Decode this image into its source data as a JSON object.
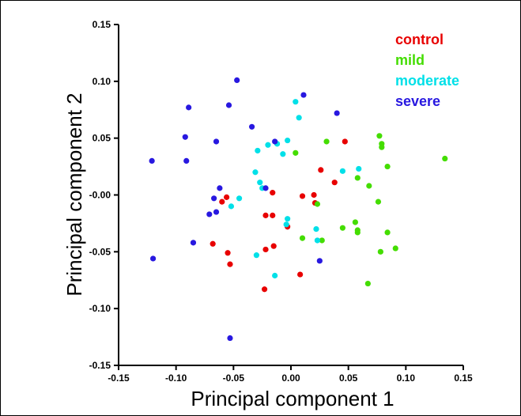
{
  "chart_data": {
    "type": "scatter",
    "title": "",
    "xlabel": "Principal component 1",
    "ylabel": "Principal component 2",
    "xlim": [
      -0.15,
      0.15
    ],
    "ylim": [
      -0.15,
      0.15
    ],
    "xticks": [
      "-0.15",
      "-0.10",
      "-0.05",
      "0.00",
      "0.05",
      "0.10",
      "0.15"
    ],
    "yticks": [
      "0.15",
      "0.10",
      "0.05",
      "-0.00",
      "-0.05",
      "-0.10",
      "-0.15"
    ],
    "grid": false,
    "legend_position": "top-right",
    "series": [
      {
        "name": "control",
        "color": "#e80000",
        "points": [
          [
            -0.056,
            -0.002
          ],
          [
            -0.06,
            -0.006
          ],
          [
            -0.068,
            -0.043
          ],
          [
            -0.055,
            -0.051
          ],
          [
            -0.053,
            -0.061
          ],
          [
            -0.022,
            -0.018
          ],
          [
            -0.016,
            -0.018
          ],
          [
            -0.016,
            0.002
          ],
          [
            -0.022,
            -0.048
          ],
          [
            -0.015,
            -0.045
          ],
          [
            -0.023,
            -0.083
          ],
          [
            -0.003,
            -0.028
          ],
          [
            0.01,
            -0.001
          ],
          [
            0.02,
            0.0
          ],
          [
            0.021,
            -0.007
          ],
          [
            0.026,
            0.022
          ],
          [
            0.038,
            0.011
          ],
          [
            0.047,
            0.047
          ],
          [
            0.008,
            -0.07
          ]
        ]
      },
      {
        "name": "mild",
        "color": "#44dd00",
        "points": [
          [
            0.004,
            0.037
          ],
          [
            0.031,
            0.047
          ],
          [
            0.023,
            -0.008
          ],
          [
            0.01,
            -0.038
          ],
          [
            0.027,
            -0.04
          ],
          [
            0.045,
            -0.029
          ],
          [
            0.056,
            -0.024
          ],
          [
            0.058,
            -0.031
          ],
          [
            0.058,
            -0.033
          ],
          [
            0.058,
            0.015
          ],
          [
            0.068,
            0.008
          ],
          [
            0.077,
            0.052
          ],
          [
            0.079,
            0.042
          ],
          [
            0.079,
            0.045
          ],
          [
            0.084,
            0.025
          ],
          [
            0.076,
            -0.006
          ],
          [
            0.084,
            -0.033
          ],
          [
            0.078,
            -0.05
          ],
          [
            0.091,
            -0.047
          ],
          [
            0.067,
            -0.078
          ],
          [
            0.134,
            0.032
          ]
        ]
      },
      {
        "name": "moderate",
        "color": "#00e0e8",
        "points": [
          [
            0.004,
            0.082
          ],
          [
            0.007,
            0.068
          ],
          [
            -0.003,
            0.048
          ],
          [
            -0.012,
            0.045
          ],
          [
            -0.02,
            0.044
          ],
          [
            -0.029,
            0.039
          ],
          [
            -0.007,
            0.036
          ],
          [
            -0.031,
            0.02
          ],
          [
            -0.027,
            0.011
          ],
          [
            -0.025,
            0.006
          ],
          [
            -0.045,
            -0.003
          ],
          [
            -0.052,
            -0.01
          ],
          [
            -0.003,
            -0.021
          ],
          [
            -0.004,
            -0.026
          ],
          [
            0.022,
            -0.03
          ],
          [
            0.023,
            -0.04
          ],
          [
            -0.03,
            -0.053
          ],
          [
            -0.014,
            -0.071
          ],
          [
            0.045,
            0.021
          ],
          [
            0.059,
            0.023
          ]
        ]
      },
      {
        "name": "severe",
        "color": "#2818e0",
        "points": [
          [
            -0.047,
            0.101
          ],
          [
            -0.054,
            0.079
          ],
          [
            -0.089,
            0.077
          ],
          [
            -0.092,
            0.051
          ],
          [
            -0.091,
            0.03
          ],
          [
            -0.121,
            0.03
          ],
          [
            -0.065,
            0.047
          ],
          [
            -0.034,
            0.06
          ],
          [
            -0.014,
            0.047
          ],
          [
            0.011,
            0.088
          ],
          [
            0.04,
            0.072
          ],
          [
            -0.062,
            0.006
          ],
          [
            -0.067,
            -0.003
          ],
          [
            -0.071,
            -0.017
          ],
          [
            -0.065,
            -0.015
          ],
          [
            -0.085,
            -0.042
          ],
          [
            -0.12,
            -0.056
          ],
          [
            -0.053,
            -0.126
          ],
          [
            -0.022,
            0.006
          ],
          [
            0.025,
            -0.058
          ]
        ]
      }
    ]
  }
}
